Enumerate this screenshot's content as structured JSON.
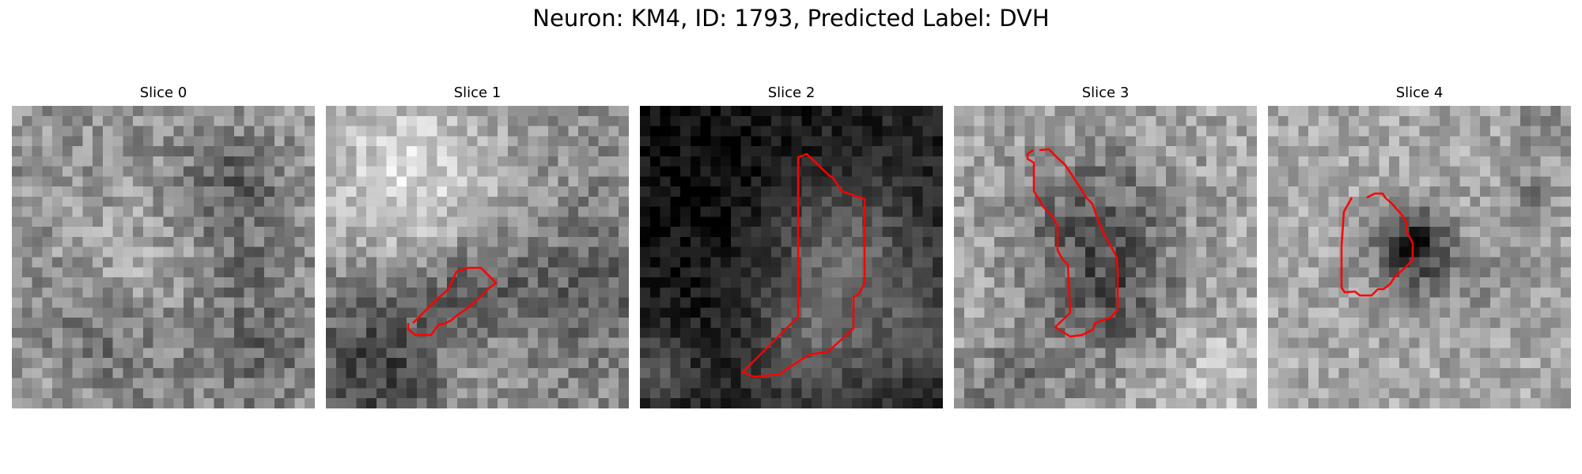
{
  "figure": {
    "title": "Neuron: KM4, ID: 1793, Predicted Label: DVH"
  },
  "contour_color": "#ff0000",
  "slices": [
    {
      "label": "Slice 0",
      "has_contour": false
    },
    {
      "label": "Slice 1",
      "has_contour": true
    },
    {
      "label": "Slice 2",
      "has_contour": true
    },
    {
      "label": "Slice 3",
      "has_contour": true
    },
    {
      "label": "Slice 4",
      "has_contour": true
    }
  ]
}
